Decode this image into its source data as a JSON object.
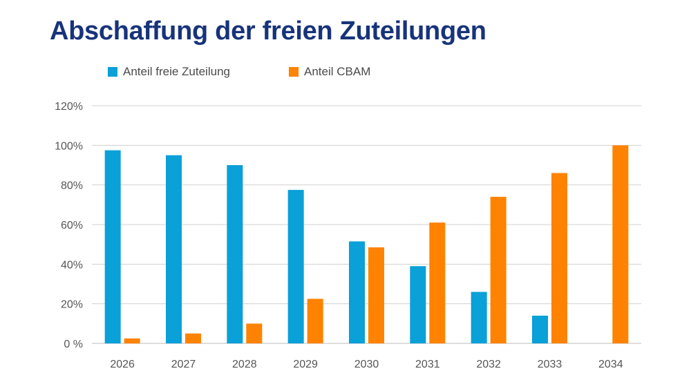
{
  "colors": {
    "title": "#17337a",
    "series_free": "#0aa0d8",
    "series_cbam": "#ff8200",
    "grid": "#d0d0d0",
    "axis": "#bdbdbd"
  },
  "chart_data": {
    "type": "bar",
    "title": "Abschaffung der freien Zuteilungen",
    "xlabel": "",
    "ylabel": "",
    "categories": [
      "2026",
      "2027",
      "2028",
      "2029",
      "2030",
      "2031",
      "2032",
      "2033",
      "2034"
    ],
    "series": [
      {
        "name": "Anteil freie Zuteilung",
        "color": "#0aa0d8",
        "values": [
          97.5,
          95,
          90,
          77.5,
          51.5,
          39,
          26,
          14,
          0
        ]
      },
      {
        "name": "Anteil CBAM",
        "color": "#ff8200",
        "values": [
          2.5,
          5,
          10,
          22.5,
          48.5,
          61,
          74,
          86,
          100
        ]
      }
    ],
    "ylim": [
      0,
      120
    ],
    "yticks": [
      0,
      20,
      40,
      60,
      80,
      100,
      120
    ],
    "ytick_labels": [
      "0 %",
      "20%",
      "40%",
      "60%",
      "80%",
      "100%",
      "120%"
    ],
    "grid": true,
    "legend": "top-left"
  }
}
